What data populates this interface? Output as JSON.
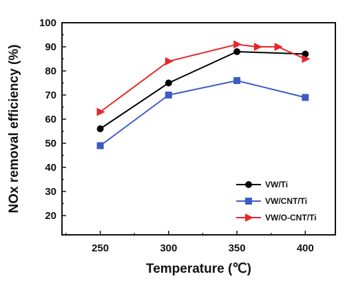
{
  "chart_data": {
    "type": "line",
    "x": [
      250,
      300,
      350,
      400
    ],
    "xlim": [
      222,
      422
    ],
    "ylim": [
      12,
      100
    ],
    "xticks": [
      250,
      300,
      350,
      400
    ],
    "yticks": [
      20,
      30,
      40,
      50,
      60,
      70,
      80,
      90,
      100
    ],
    "xlabel": "Temperature (℃)",
    "ylabel": "NOx removal efficiency (%)",
    "grid": false,
    "legend_position": "bottom-right",
    "series": [
      {
        "name": "VW/Ti",
        "color": "#000000",
        "marker": "circle",
        "x": [
          250,
          300,
          350,
          400
        ],
        "values": [
          56,
          75,
          88,
          87
        ]
      },
      {
        "name": "VW/CNT/Ti",
        "color": "#3b5cc6",
        "marker": "square",
        "x": [
          250,
          300,
          350,
          400
        ],
        "values": [
          49,
          70,
          76,
          69
        ]
      },
      {
        "name": "VW/O-CNT/Ti",
        "color": "#e8262a",
        "marker": "triangle-right",
        "x": [
          250,
          300,
          350,
          365,
          380,
          400
        ],
        "values": [
          63,
          84,
          91,
          90,
          90,
          85
        ]
      }
    ]
  }
}
